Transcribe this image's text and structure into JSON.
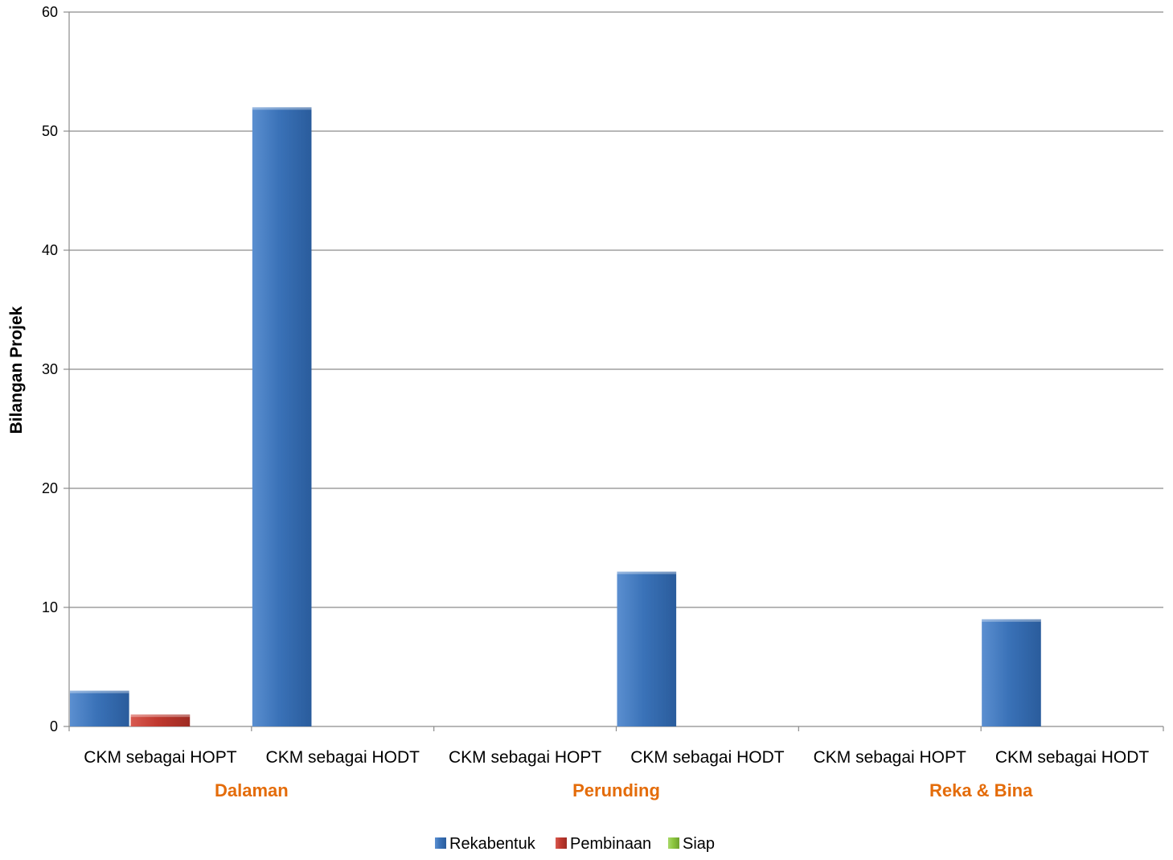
{
  "chart_data": {
    "type": "bar",
    "ylabel": "Bilangan Projek",
    "ylim": [
      0,
      60
    ],
    "yticks": [
      0,
      10,
      20,
      30,
      40,
      50,
      60
    ],
    "grid": true,
    "legend_position": "bottom",
    "groups": [
      {
        "label": "Dalaman",
        "categories": [
          "CKM sebagai HOPT",
          "CKM sebagai HODT"
        ]
      },
      {
        "label": "Perunding",
        "categories": [
          "CKM sebagai HOPT",
          "CKM sebagai HODT"
        ]
      },
      {
        "label": "Reka & Bina",
        "categories": [
          "CKM sebagai HOPT",
          "CKM sebagai HODT"
        ]
      }
    ],
    "series": [
      {
        "name": "Rekabentuk",
        "color": "#3a72b8",
        "values": [
          3,
          52,
          0,
          13,
          0,
          9
        ]
      },
      {
        "name": "Pembinaan",
        "color": "#c0392f",
        "values": [
          1,
          0,
          0,
          0,
          0,
          0
        ]
      },
      {
        "name": "Siap",
        "color": "#8cc63f",
        "values": [
          0,
          0,
          0,
          0,
          0,
          0
        ]
      }
    ],
    "group_label_color": "#e46c0a"
  }
}
